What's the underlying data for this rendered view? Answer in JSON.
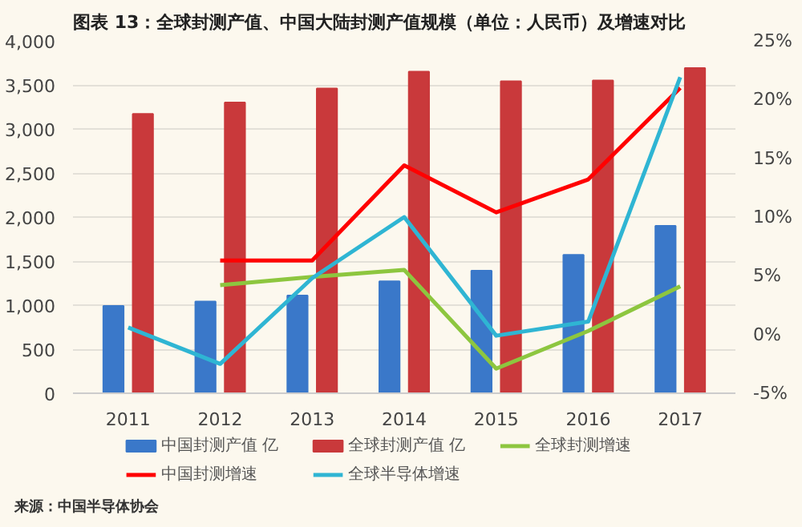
{
  "chart_data": {
    "type": "bar",
    "title": "图表 13：全球封测产值、中国大陆封测产值规模（单位：人民币）及增速对比",
    "categories": [
      "2011",
      "2012",
      "2013",
      "2014",
      "2015",
      "2016",
      "2017"
    ],
    "series": [
      {
        "name": "中国封测产值 亿",
        "color": "#3a78c9",
        "values": [
          990,
          1040,
          1110,
          1270,
          1390,
          1570,
          1900
        ]
      },
      {
        "name": "全球封测产值 亿",
        "color": "#c9393b",
        "values": [
          3170,
          3300,
          3460,
          3650,
          3540,
          3550,
          3690
        ]
      },
      {
        "name": "全球封测增速",
        "type": "line",
        "axis": "y2",
        "color": "#8dc63f",
        "values": [
          null,
          4.2,
          4.9,
          5.5,
          -2.9,
          0.3,
          4.1
        ]
      },
      {
        "name": "中国封测增速",
        "type": "line",
        "axis": "y2",
        "color": "#ff0000",
        "values": [
          null,
          6.3,
          6.3,
          14.4,
          10.4,
          13.2,
          21.0
        ]
      },
      {
        "name": "全球半导体增速",
        "type": "line",
        "axis": "y2",
        "color": "#2fb5d3",
        "values": [
          0.6,
          -2.5,
          4.8,
          10.0,
          -0.1,
          1.1,
          21.9
        ]
      }
    ],
    "ylim": [
      0,
      4000
    ],
    "yticks": [
      0,
      {
        "value": 500,
        "label": "500"
      },
      {
        "value": 1000,
        "label": "1,000"
      },
      {
        "value": 1500,
        "label": "1,500"
      },
      {
        "value": 2000,
        "label": "2,000"
      },
      {
        "value": 2500,
        "label": "2,500"
      },
      {
        "value": 3000,
        "label": "3,000"
      },
      {
        "value": 3500,
        "label": "3,500"
      },
      {
        "value": 4000,
        "label": "4,000"
      }
    ],
    "y2lim": [
      -5,
      25
    ],
    "y2ticks": [
      {
        "value": -5,
        "label": "-5%"
      },
      {
        "value": 0,
        "label": "0%"
      },
      {
        "value": 5,
        "label": "5%"
      },
      {
        "value": 10,
        "label": "10%"
      },
      {
        "value": 15,
        "label": "15%"
      },
      {
        "value": 20,
        "label": "20%"
      },
      {
        "value": 25,
        "label": "25%"
      }
    ],
    "grid": "y",
    "legend": "bottom",
    "annotations": [
      "来源：中国半导体协会"
    ]
  }
}
